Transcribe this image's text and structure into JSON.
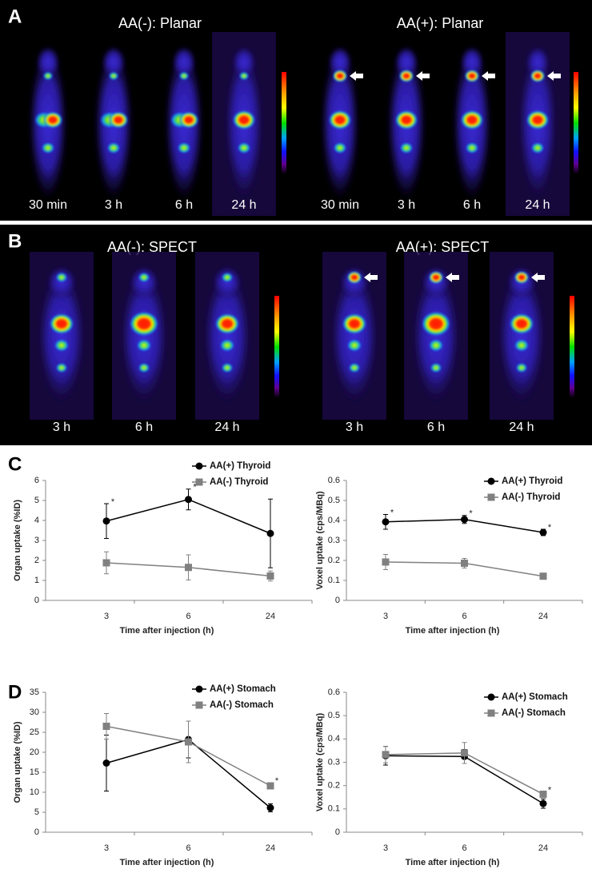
{
  "panels": [
    {
      "label": "A",
      "titles": [
        "AA(-): Planar",
        "AA(+): Planar"
      ],
      "times": [
        "30 min",
        "3 h",
        "6 h",
        "24 h",
        "30 min",
        "3 h",
        "6 h",
        "24 h"
      ]
    },
    {
      "label": "B",
      "titles": [
        "AA(-): SPECT",
        "AA(+): SPECT"
      ],
      "times": [
        "3 h",
        "6 h",
        "24 h",
        "3 h",
        "6 h",
        "24 h"
      ]
    },
    {
      "label": "C"
    },
    {
      "label": "D"
    }
  ],
  "chart_data": [
    {
      "type": "line",
      "xlabel": "Time after injection (h)",
      "ylabel": "Organ uptake (%ID)",
      "categories": [
        "3",
        "6",
        "24"
      ],
      "ylim": [
        0,
        6
      ],
      "yticks": [
        0,
        1,
        2,
        3,
        4,
        5,
        6
      ],
      "series": [
        {
          "name": "AA(+) Thyroid",
          "color": "#000000",
          "marker": "circle",
          "values": [
            3.97,
            5.05,
            3.35
          ],
          "errors": [
            0.87,
            0.52,
            1.72
          ]
        },
        {
          "name": "AA(-) Thyroid",
          "color": "#808080",
          "marker": "square",
          "values": [
            1.88,
            1.65,
            1.22
          ],
          "errors": [
            0.55,
            0.63,
            0.25
          ]
        }
      ],
      "annotations": [
        {
          "text": "*",
          "x": "3",
          "series": "AA(+) Thyroid"
        },
        {
          "text": "*",
          "x": "6",
          "series": "AA(+) Thyroid"
        }
      ]
    },
    {
      "type": "line",
      "xlabel": "Time after injection (h)",
      "ylabel": "Voxel uptake (cps/MBq)",
      "categories": [
        "3",
        "6",
        "24"
      ],
      "ylim": [
        0,
        0.6
      ],
      "yticks": [
        0,
        0.1,
        0.2,
        0.3,
        0.4,
        0.5,
        0.6
      ],
      "series": [
        {
          "name": "AA(+) Thyroid",
          "color": "#000000",
          "marker": "circle",
          "values": [
            0.393,
            0.405,
            0.34
          ],
          "errors": [
            0.037,
            0.02,
            0.016
          ]
        },
        {
          "name": "AA(-) Thyroid",
          "color": "#808080",
          "marker": "square",
          "values": [
            0.192,
            0.186,
            0.121
          ],
          "errors": [
            0.038,
            0.024,
            0.014
          ]
        }
      ],
      "annotations": [
        {
          "text": "*",
          "x": "3",
          "series": "AA(+) Thyroid"
        },
        {
          "text": "*",
          "x": "6",
          "series": "AA(+) Thyroid"
        },
        {
          "text": "*",
          "x": "24",
          "series": "AA(+) Thyroid"
        }
      ]
    },
    {
      "type": "line",
      "xlabel": "Time after injection (h)",
      "ylabel": "Organ uptake (%ID)",
      "categories": [
        "3",
        "6",
        "24"
      ],
      "ylim": [
        0,
        35
      ],
      "yticks": [
        0,
        5,
        10,
        15,
        20,
        25,
        30,
        35
      ],
      "series": [
        {
          "name": "AA(+) Stomach",
          "color": "#000000",
          "marker": "circle",
          "values": [
            17.3,
            23.2,
            6.1
          ],
          "errors": [
            7.0,
            4.6,
            1.0
          ]
        },
        {
          "name": "AA(-) Stomach",
          "color": "#808080",
          "marker": "square",
          "values": [
            26.5,
            22.6,
            11.6
          ],
          "errors": [
            3.2,
            5.2,
            0.8
          ]
        }
      ],
      "annotations": [
        {
          "text": "*",
          "x": "24",
          "series": "AA(-) Stomach"
        }
      ]
    },
    {
      "type": "line",
      "xlabel": "Time after injection (h)",
      "ylabel": "Voxel uptake (cps/MBq)",
      "categories": [
        "3",
        "6",
        "24"
      ],
      "ylim": [
        0,
        0.6
      ],
      "yticks": [
        0,
        0.1,
        0.2,
        0.3,
        0.4,
        0.5,
        0.6
      ],
      "series": [
        {
          "name": "AA(+) Stomach",
          "color": "#000000",
          "marker": "circle",
          "values": [
            0.328,
            0.325,
            0.123
          ],
          "errors": [
            0.04,
            0.03,
            0.02
          ]
        },
        {
          "name": "AA(-) Stomach",
          "color": "#808080",
          "marker": "square",
          "values": [
            0.333,
            0.34,
            0.163
          ],
          "errors": [
            0.035,
            0.045,
            0.01
          ]
        }
      ],
      "annotations": [
        {
          "text": "*",
          "x": "24",
          "series": "AA(-) Stomach"
        }
      ]
    }
  ]
}
